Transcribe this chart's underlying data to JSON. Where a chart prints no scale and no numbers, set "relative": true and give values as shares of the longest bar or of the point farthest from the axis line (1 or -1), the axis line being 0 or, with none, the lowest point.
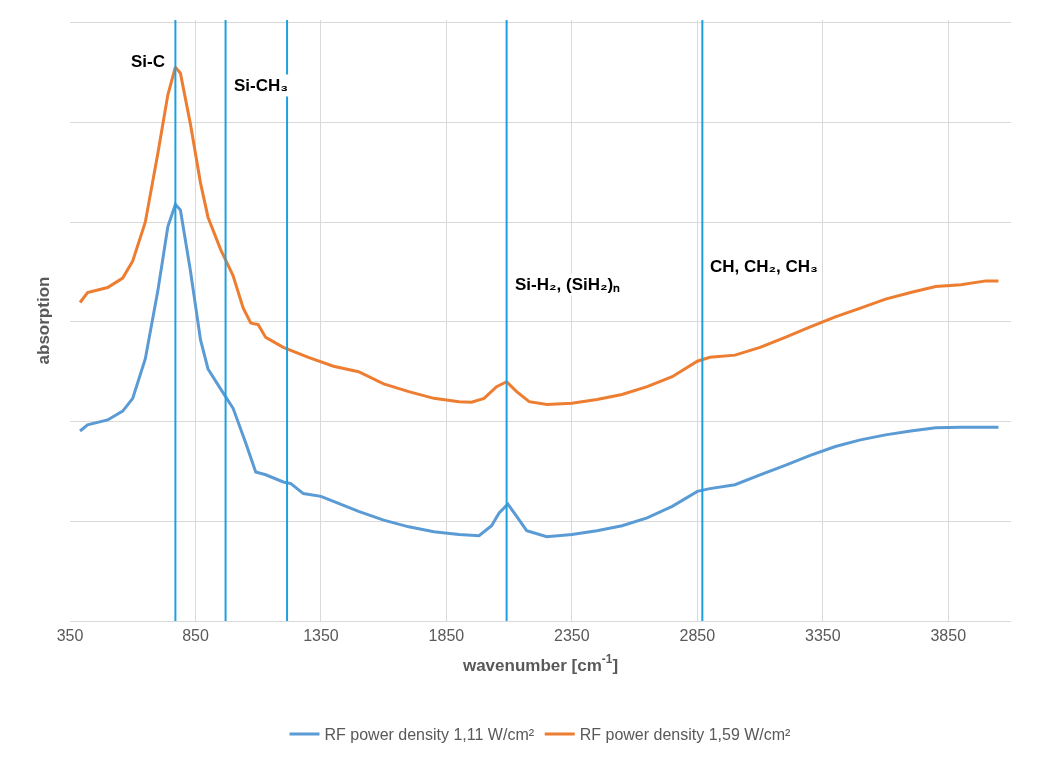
{
  "chart_data": {
    "type": "line",
    "xlabel": "wavenumber [cm$^{-1}$]",
    "ylabel": "absorption",
    "relative": true,
    "xlim": [
      350,
      4100
    ],
    "xticks": [
      350,
      850,
      1350,
      1850,
      2350,
      2850,
      3350,
      3850
    ],
    "grid": true,
    "legend": "bottom",
    "marker": "none",
    "line_style": "solid",
    "series": [
      {
        "name": "RF power density 1,11 W/cm²",
        "color": "#5b9bd5",
        "x": [
          390,
          420,
          500,
          560,
          600,
          650,
          700,
          740,
          770,
          790,
          830,
          870,
          900,
          950,
          1000,
          1050,
          1090,
          1130,
          1200,
          1230,
          1280,
          1350,
          1400,
          1500,
          1600,
          1700,
          1800,
          1900,
          1980,
          2030,
          2060,
          2095,
          2130,
          2170,
          2250,
          2350,
          2450,
          2550,
          2650,
          2750,
          2850,
          2900,
          3000,
          3100,
          3200,
          3300,
          3400,
          3500,
          3600,
          3700,
          3800,
          3900,
          4050
        ],
        "values": [
          0.343,
          0.354,
          0.363,
          0.379,
          0.402,
          0.473,
          0.596,
          0.712,
          0.752,
          0.742,
          0.632,
          0.508,
          0.455,
          0.419,
          0.384,
          0.322,
          0.269,
          0.264,
          0.251,
          0.248,
          0.23,
          0.225,
          0.216,
          0.198,
          0.182,
          0.17,
          0.161,
          0.156,
          0.154,
          0.172,
          0.195,
          0.211,
          0.189,
          0.163,
          0.152,
          0.156,
          0.163,
          0.172,
          0.186,
          0.207,
          0.234,
          0.239,
          0.246,
          0.264,
          0.281,
          0.299,
          0.315,
          0.327,
          0.336,
          0.343,
          0.349,
          0.35,
          0.35
        ]
      },
      {
        "name": "RF power density 1,59 W/cm²",
        "color": "#ed7d31",
        "x": [
          390,
          420,
          500,
          560,
          600,
          650,
          700,
          740,
          770,
          790,
          830,
          870,
          900,
          950,
          1000,
          1040,
          1070,
          1100,
          1130,
          1200,
          1300,
          1400,
          1500,
          1600,
          1700,
          1800,
          1900,
          1950,
          2000,
          2050,
          2090,
          2130,
          2180,
          2250,
          2350,
          2450,
          2550,
          2650,
          2750,
          2850,
          2900,
          3000,
          3100,
          3200,
          3300,
          3400,
          3500,
          3600,
          3700,
          3800,
          3900,
          4000,
          4050
        ],
        "values": [
          0.575,
          0.593,
          0.602,
          0.619,
          0.65,
          0.72,
          0.844,
          0.95,
          1.0,
          0.989,
          0.897,
          0.791,
          0.729,
          0.671,
          0.623,
          0.565,
          0.538,
          0.535,
          0.512,
          0.494,
          0.476,
          0.46,
          0.45,
          0.428,
          0.414,
          0.402,
          0.396,
          0.395,
          0.402,
          0.423,
          0.432,
          0.414,
          0.396,
          0.391,
          0.393,
          0.4,
          0.409,
          0.423,
          0.441,
          0.469,
          0.476,
          0.48,
          0.494,
          0.512,
          0.531,
          0.549,
          0.565,
          0.581,
          0.593,
          0.604,
          0.607,
          0.614,
          0.614
        ]
      }
    ],
    "ref_lines": [
      {
        "axis": "x",
        "value": 770,
        "color": "#1ea0e0",
        "label": "Si-C"
      },
      {
        "axis": "x",
        "value": 970,
        "color": "#1ea0e0",
        "label": "Si-CH₃"
      },
      {
        "axis": "x",
        "value": 1215,
        "color": "#1ea0e0"
      },
      {
        "axis": "x",
        "value": 2090,
        "color": "#1ea0e0",
        "label": "Si-H₂, (SiH₂)ₙ"
      },
      {
        "axis": "x",
        "value": 2870,
        "color": "#1ea0e0",
        "label": "CH, CH₂, CH₃"
      }
    ]
  }
}
